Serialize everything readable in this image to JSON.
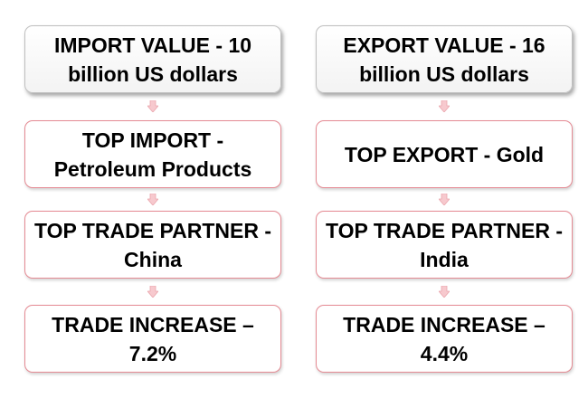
{
  "colors": {
    "header_border": "#bfbfbf",
    "step_border": "#e58a93",
    "arrow_fill": "#f7c9ce",
    "arrow_stroke": "#eaa6ad",
    "text": "#000000"
  },
  "import_column": {
    "boxes": [
      {
        "label": "IMPORT VALUE - 10 billion US dollars"
      },
      {
        "label": "TOP IMPORT - Petroleum Products"
      },
      {
        "label": "TOP TRADE PARTNER - China"
      },
      {
        "label": "TRADE INCREASE – 7.2%"
      }
    ]
  },
  "export_column": {
    "boxes": [
      {
        "label": "EXPORT VALUE - 16 billion US dollars"
      },
      {
        "label": "TOP EXPORT - Gold"
      },
      {
        "label": "TOP TRADE PARTNER - India"
      },
      {
        "label": "TRADE INCREASE – 4.4%"
      }
    ]
  },
  "connector_icon": "down-arrow-icon"
}
